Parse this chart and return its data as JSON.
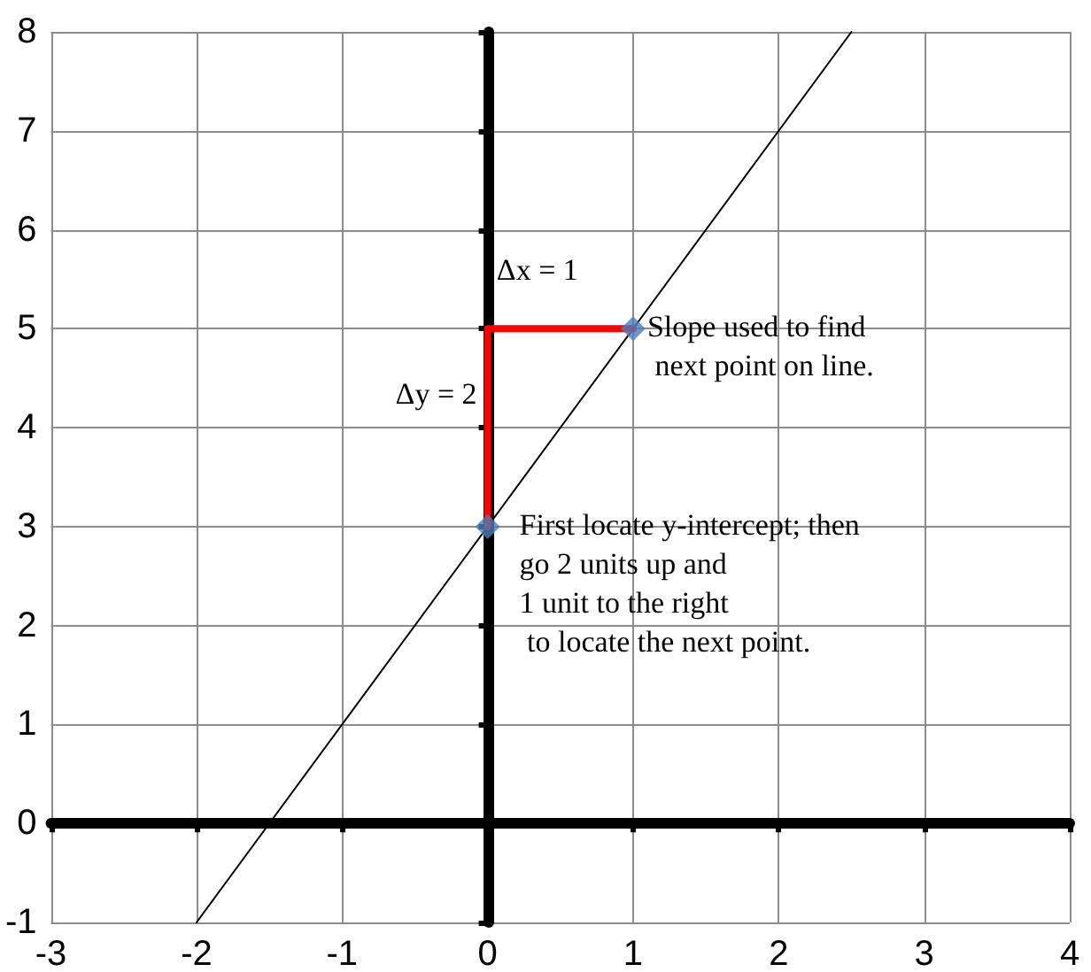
{
  "chart_data": {
    "type": "line",
    "xlim": [
      -3,
      4
    ],
    "ylim": [
      -1,
      8
    ],
    "xticks": [
      -3,
      -2,
      -1,
      0,
      1,
      2,
      3,
      4
    ],
    "yticks": [
      -1,
      0,
      1,
      2,
      3,
      4,
      5,
      6,
      7,
      8
    ],
    "grid": true,
    "series": [
      {
        "color": "#000000",
        "x": [
          -2,
          2.5
        ],
        "values": [
          -1,
          8
        ],
        "marker": "none",
        "line_style": "solid"
      },
      {
        "color": "#ff0000",
        "x": [
          0,
          0,
          1
        ],
        "values": [
          3,
          5,
          5
        ],
        "marker": "none",
        "line_style": "solid"
      },
      {
        "type": "scatter",
        "color": "#4a7ebb",
        "x": [
          0,
          1
        ],
        "values": [
          3,
          5
        ],
        "marker": "diamond"
      }
    ],
    "annotations": [
      {
        "text": "Δx = 1",
        "x": 0.5,
        "y": 5
      },
      {
        "text": "Δy = 2",
        "x": 0,
        "y": 4
      },
      {
        "text": "Slope used to find\n next point on line.",
        "x": 1,
        "y": 5
      },
      {
        "text": "First locate y-intercept; then\ngo 2 units up and\n1 unit to the right\n to locate the next point.",
        "x": 0,
        "y": 3
      }
    ]
  }
}
